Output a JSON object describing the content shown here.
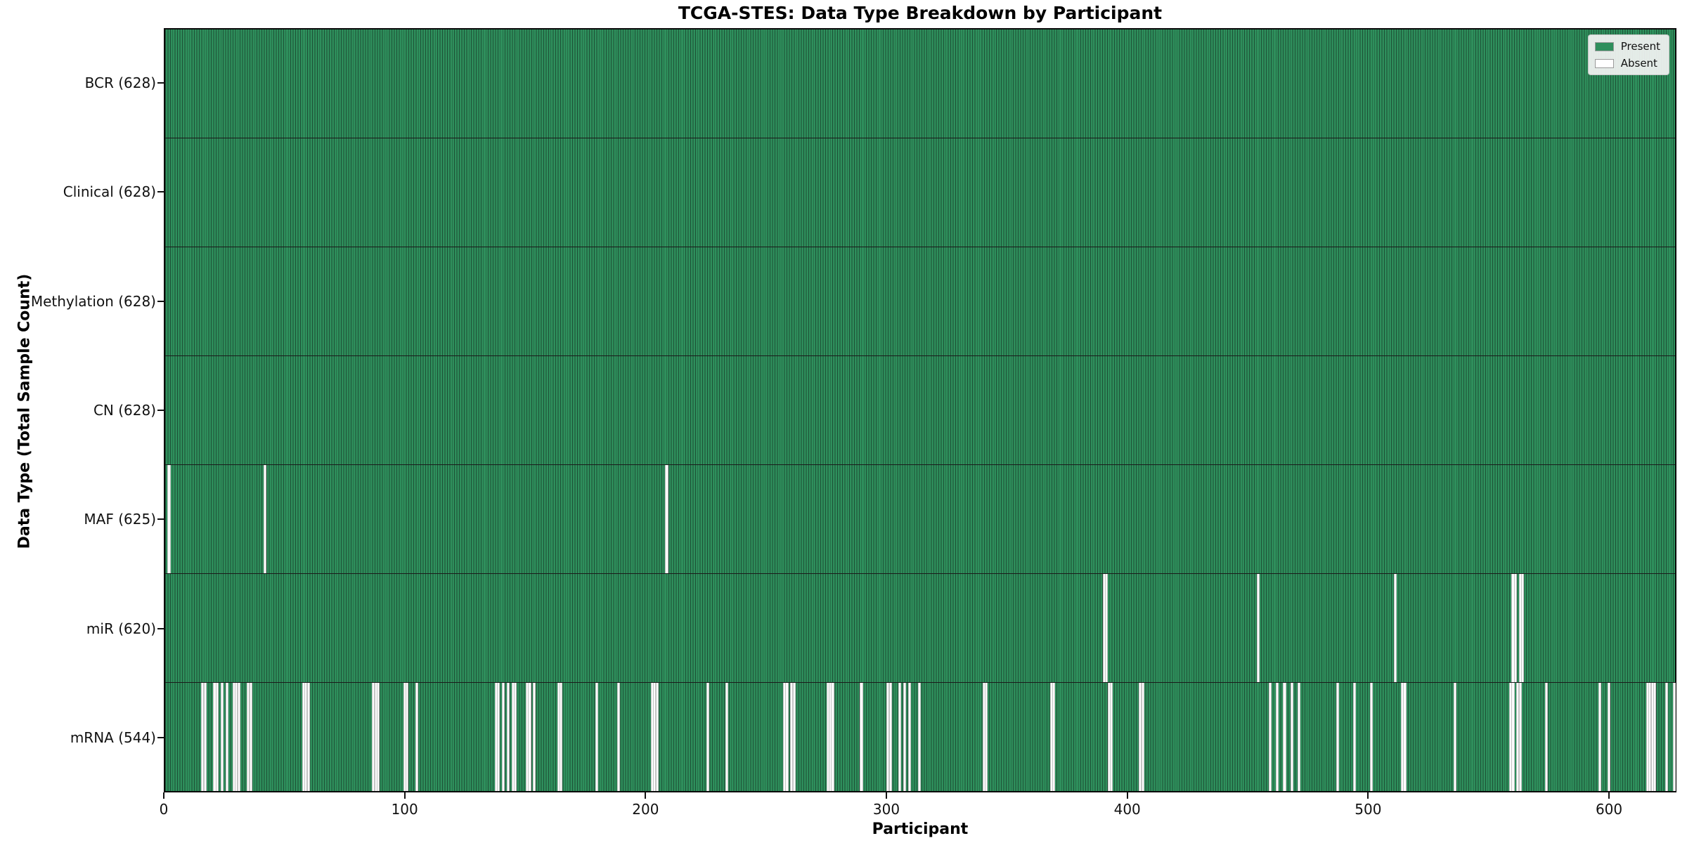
{
  "colors": {
    "present": "#2e8f5c",
    "absent": "#fcfcfc",
    "bar_edge": "#1d4f35",
    "row_divider": "#1a1a1a",
    "plot_border": "#0b0b0b",
    "legend_border": "#c7c7c7"
  },
  "chart_data": {
    "type": "heatmap",
    "title": "TCGA-STES: Data Type Breakdown by Participant",
    "xlabel": "Participant",
    "ylabel": "Data Type (Total Sample Count)",
    "n_participants": 628,
    "x_range": [
      0,
      628
    ],
    "x_ticks": [
      0,
      100,
      200,
      300,
      400,
      500,
      600
    ],
    "grid": false,
    "legend_position": "upper right",
    "legend": [
      "Present",
      "Absent"
    ],
    "rows": [
      {
        "name": "BCR",
        "label": "BCR (628)",
        "present_count": 628,
        "absent_count": 0,
        "absent_participants": []
      },
      {
        "name": "Clinical",
        "label": "Clinical (628)",
        "present_count": 628,
        "absent_count": 0,
        "absent_participants": []
      },
      {
        "name": "Methylation",
        "label": "Methylation (628)",
        "present_count": 628,
        "absent_count": 0,
        "absent_participants": []
      },
      {
        "name": "CN",
        "label": "CN (628)",
        "present_count": 628,
        "absent_count": 0,
        "absent_participants": []
      },
      {
        "name": "MAF",
        "label": "MAF (625)",
        "present_count": 625,
        "absent_count": 3,
        "absent_participants": [
          1,
          41,
          208
        ]
      },
      {
        "name": "miR",
        "label": "miR (620)",
        "present_count": 620,
        "absent_count": 8,
        "absent_participants": [
          390,
          391,
          454,
          511,
          560,
          561,
          563,
          564
        ]
      },
      {
        "name": "mRNA",
        "label": "mRNA (544)",
        "present_count": 544,
        "absent_count": 84,
        "absent_participants": [
          15,
          16,
          20,
          21,
          23,
          25,
          28,
          29,
          30,
          34,
          35,
          57,
          58,
          59,
          86,
          87,
          88,
          99,
          100,
          104,
          137,
          138,
          140,
          142,
          144,
          145,
          150,
          151,
          153,
          163,
          164,
          179,
          188,
          202,
          203,
          204,
          225,
          233,
          257,
          258,
          260,
          261,
          275,
          276,
          277,
          289,
          300,
          301,
          305,
          307,
          309,
          313,
          340,
          341,
          368,
          369,
          392,
          393,
          405,
          406,
          459,
          462,
          465,
          468,
          471,
          487,
          494,
          501,
          514,
          515,
          536,
          559,
          560,
          562,
          563,
          574,
          596,
          600,
          616,
          617,
          618,
          619,
          624,
          627
        ]
      }
    ]
  }
}
